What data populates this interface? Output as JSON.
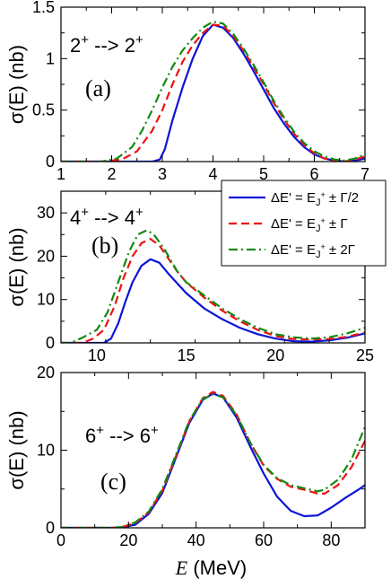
{
  "legend": {
    "entries": [
      {
        "label": "ΔE' = E_{J⁺} ± Γ/2",
        "main": "ΔE' = E",
        "sub": "J",
        "sup": "+",
        "rest": " ±  Γ/2",
        "color": "#0a14d6",
        "dash": "solid"
      },
      {
        "label": "ΔE' = E_{J⁺} ± Γ",
        "main": "ΔE' = E",
        "sub": "J",
        "sup": "+",
        "rest": " ±  Γ",
        "color": "#ee1111",
        "dash": "dashed"
      },
      {
        "label": "ΔE' = E_{J⁺} ± 2Γ",
        "main": "ΔE' = E",
        "sub": "J",
        "sup": "+",
        "rest": " ± 2Γ",
        "color": "#138a13",
        "dash": "dashdot"
      }
    ]
  },
  "chart_data": [
    {
      "type": "line",
      "panel_label": "(a)",
      "transition": {
        "from": "2",
        "to": "2",
        "sup": "+",
        "arrow": "-->"
      },
      "ylabel": "σ(E) (nb)",
      "xlim": [
        1,
        7
      ],
      "ylim": [
        0,
        1.5
      ],
      "xticks": [
        1,
        2,
        3,
        4,
        5,
        6,
        7
      ],
      "yticks": [
        0,
        0.5,
        1,
        1.5
      ],
      "ytick_labels": [
        "0",
        "0.5",
        "1",
        "1.5"
      ],
      "series": [
        {
          "color": "#0a14d6",
          "dash": "solid",
          "x": [
            1.0,
            2.0,
            2.8,
            2.95,
            3.05,
            3.2,
            3.4,
            3.6,
            3.8,
            4.0,
            4.2,
            4.4,
            4.6,
            4.8,
            5.0,
            5.2,
            5.4,
            5.6,
            5.8,
            6.0,
            6.2,
            6.4,
            6.6,
            6.8,
            7.0
          ],
          "y": [
            0,
            0,
            0,
            0.02,
            0.12,
            0.4,
            0.72,
            1.0,
            1.22,
            1.33,
            1.3,
            1.2,
            1.05,
            0.88,
            0.7,
            0.52,
            0.37,
            0.24,
            0.14,
            0.07,
            0.03,
            0.01,
            0,
            0.01,
            0.03
          ]
        },
        {
          "color": "#ee1111",
          "dash": "dashed",
          "x": [
            1.0,
            1.8,
            2.2,
            2.5,
            2.8,
            3.0,
            3.2,
            3.4,
            3.6,
            3.8,
            4.0,
            4.2,
            4.4,
            4.6,
            4.8,
            5.0,
            5.2,
            5.4,
            5.6,
            5.8,
            6.0,
            6.2,
            6.4,
            6.6,
            6.8,
            7.0
          ],
          "y": [
            0,
            0,
            0.02,
            0.1,
            0.3,
            0.5,
            0.75,
            0.97,
            1.13,
            1.25,
            1.33,
            1.32,
            1.22,
            1.08,
            0.92,
            0.75,
            0.57,
            0.41,
            0.27,
            0.16,
            0.08,
            0.03,
            0.01,
            0,
            0.02,
            0.05
          ]
        },
        {
          "color": "#138a13",
          "dash": "dashdot",
          "x": [
            1.0,
            1.8,
            2.1,
            2.4,
            2.6,
            2.8,
            3.0,
            3.2,
            3.4,
            3.6,
            3.8,
            4.0,
            4.2,
            4.4,
            4.6,
            4.8,
            5.0,
            5.2,
            5.4,
            5.6,
            5.8,
            6.0,
            6.2,
            6.4,
            6.6,
            6.8,
            7.0
          ],
          "y": [
            0,
            0,
            0.03,
            0.14,
            0.3,
            0.5,
            0.72,
            0.92,
            1.08,
            1.2,
            1.3,
            1.36,
            1.34,
            1.24,
            1.1,
            0.94,
            0.77,
            0.59,
            0.43,
            0.29,
            0.18,
            0.1,
            0.05,
            0.02,
            0.01,
            0.03,
            0.07
          ]
        }
      ]
    },
    {
      "type": "line",
      "panel_label": "(b)",
      "transition": {
        "from": "4",
        "to": "4",
        "sup": "+",
        "arrow": "-->"
      },
      "ylabel": "σ(E) (nb)",
      "xlim": [
        8,
        25
      ],
      "ylim": [
        0,
        35
      ],
      "xticks": [
        10,
        15,
        20,
        25
      ],
      "yticks": [
        0,
        10,
        20,
        30
      ],
      "ytick_labels": [
        "0",
        "10",
        "20",
        "30"
      ],
      "series": [
        {
          "color": "#0a14d6",
          "dash": "solid",
          "x": [
            8,
            10.4,
            10.8,
            11.2,
            11.6,
            12.0,
            12.5,
            13.0,
            13.5,
            14.0,
            15.0,
            16.0,
            17.0,
            18.0,
            19.0,
            20.0,
            21.0,
            22.0,
            23.0,
            24.0,
            25.0
          ],
          "y": [
            0,
            0,
            1.0,
            4.5,
            9.5,
            14.0,
            17.8,
            19.3,
            18.5,
            16.0,
            11.5,
            8.0,
            5.5,
            3.5,
            2.0,
            1.0,
            0.4,
            0.3,
            0.6,
            1.2,
            2.2
          ]
        },
        {
          "color": "#ee1111",
          "dash": "dashed",
          "x": [
            8,
            9.2,
            9.8,
            10.4,
            11.0,
            11.5,
            12.0,
            12.5,
            13.0,
            13.5,
            14.0,
            14.5,
            15.0,
            16.0,
            17.0,
            18.0,
            19.0,
            20.0,
            21.0,
            22.0,
            23.0,
            24.0,
            25.0
          ],
          "y": [
            0,
            0,
            1.0,
            3.0,
            8.5,
            15.0,
            20.0,
            23.0,
            24.0,
            22.5,
            19.5,
            16.5,
            14.0,
            10.5,
            7.5,
            5.0,
            3.0,
            1.6,
            0.9,
            0.8,
            0.9,
            1.4,
            2.4
          ]
        },
        {
          "color": "#138a13",
          "dash": "dashdot",
          "x": [
            8,
            8.5,
            9.2,
            10.0,
            10.6,
            11.2,
            11.8,
            12.3,
            12.8,
            13.2,
            13.8,
            14.5,
            15.0,
            16.0,
            17.0,
            18.0,
            19.0,
            20.0,
            21.0,
            22.0,
            23.0,
            24.0,
            25.0
          ],
          "y": [
            0,
            0,
            1.2,
            3.0,
            7.0,
            14.0,
            21.0,
            25.0,
            26.0,
            25.0,
            21.5,
            16.5,
            14.0,
            11.0,
            8.0,
            5.5,
            3.5,
            2.0,
            1.3,
            1.0,
            1.3,
            2.2,
            3.5
          ]
        }
      ]
    },
    {
      "type": "line",
      "panel_label": "(c)",
      "transition": {
        "from": "6",
        "to": "6",
        "sup": "+",
        "arrow": "-->"
      },
      "ylabel": "σ(E) (nb)",
      "xlabel_italic": "E",
      "xlabel_rest": " (MeV)",
      "xlim": [
        0,
        90
      ],
      "ylim": [
        0,
        20
      ],
      "xticks": [
        0,
        20,
        40,
        60,
        80
      ],
      "yticks": [
        0,
        10,
        20
      ],
      "ytick_labels": [
        "0",
        "10",
        "20"
      ],
      "series": [
        {
          "color": "#0a14d6",
          "dash": "solid",
          "x": [
            0,
            15,
            18,
            22,
            26,
            30,
            34,
            38,
            42,
            45,
            48,
            52,
            56,
            60,
            64,
            68,
            72,
            76,
            80,
            84,
            88,
            90
          ],
          "y": [
            0,
            0,
            0.05,
            0.4,
            1.8,
            4.5,
            9.0,
            13.5,
            16.5,
            17.3,
            16.8,
            14.2,
            10.5,
            7.0,
            4.0,
            2.2,
            1.5,
            1.6,
            2.6,
            3.8,
            4.9,
            5.5
          ]
        },
        {
          "color": "#ee1111",
          "dash": "dashed",
          "x": [
            0,
            15,
            18,
            22,
            26,
            30,
            34,
            38,
            42,
            45,
            48,
            52,
            56,
            60,
            64,
            68,
            72,
            76,
            78,
            82,
            86,
            90
          ],
          "y": [
            0,
            0,
            0.1,
            0.6,
            2.0,
            4.8,
            9.2,
            13.7,
            16.7,
            17.5,
            17.0,
            14.6,
            11.0,
            8.0,
            6.3,
            5.3,
            4.9,
            4.4,
            4.4,
            5.5,
            7.8,
            11.2
          ]
        },
        {
          "color": "#138a13",
          "dash": "dashdot",
          "x": [
            0,
            15,
            18,
            22,
            26,
            30,
            34,
            38,
            42,
            45,
            48,
            52,
            56,
            60,
            64,
            68,
            72,
            76,
            78,
            82,
            86,
            90
          ],
          "y": [
            0,
            0,
            0.1,
            0.7,
            2.1,
            5.0,
            9.4,
            13.8,
            16.6,
            17.2,
            16.8,
            14.5,
            11.0,
            8.1,
            6.4,
            5.5,
            5.1,
            4.7,
            4.9,
            6.2,
            8.8,
            13.0
          ]
        }
      ]
    }
  ]
}
